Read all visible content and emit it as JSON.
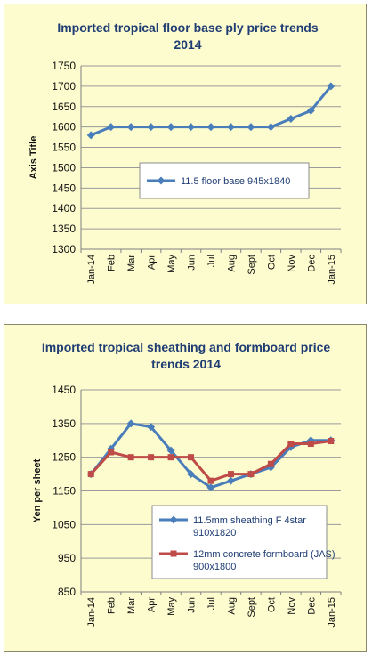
{
  "chart_data": [
    {
      "type": "line",
      "title_lines": [
        "Imported tropical floor base ply price trends",
        "2014"
      ],
      "ylabel": "Axis Title",
      "categories": [
        "Jan-14",
        "Feb",
        "Mar",
        "Apr",
        "May",
        "Jun",
        "Jul",
        "Aug",
        "Sept",
        "Oct",
        "Nov",
        "Dec",
        "Jan-15"
      ],
      "ylim": [
        1300,
        1750
      ],
      "yticks": [
        1300,
        1350,
        1400,
        1450,
        1500,
        1550,
        1600,
        1650,
        1700,
        1750
      ],
      "grid": true,
      "legend_position": "center",
      "series": [
        {
          "name": "11.5 floor base 945x1840",
          "color": "#4a7ebb",
          "marker": "diamond",
          "values": [
            1580,
            1600,
            1600,
            1600,
            1600,
            1600,
            1600,
            1600,
            1600,
            1600,
            1620,
            1640,
            1700
          ]
        }
      ]
    },
    {
      "type": "line",
      "title_lines": [
        "Imported tropical sheathing and formboard price",
        "trends 2014"
      ],
      "ylabel": "Yen per sheet",
      "categories": [
        "Jan-14",
        "Feb",
        "Mar",
        "Apr",
        "May",
        "Jun",
        "Jul",
        "Aug",
        "Sept",
        "Oct",
        "Nov",
        "Dec",
        "Jan-15"
      ],
      "ylim": [
        850,
        1450
      ],
      "yticks": [
        850,
        950,
        1050,
        1150,
        1250,
        1350,
        1450
      ],
      "grid": true,
      "legend_position": "bottom-right",
      "series": [
        {
          "name_lines": [
            "11.5mm sheathing F 4star",
            "910x1820"
          ],
          "color": "#4a7ebb",
          "marker": "diamond",
          "values": [
            1200,
            1275,
            1350,
            1340,
            1270,
            1200,
            1160,
            1180,
            1200,
            1220,
            1280,
            1300,
            1300
          ]
        },
        {
          "name_lines": [
            "12mm concrete formboard (JAS)",
            "900x1800"
          ],
          "color": "#be4b48",
          "marker": "square",
          "values": [
            1200,
            1265,
            1250,
            1250,
            1250,
            1250,
            1180,
            1200,
            1200,
            1230,
            1290,
            1290,
            1298
          ]
        }
      ]
    }
  ]
}
